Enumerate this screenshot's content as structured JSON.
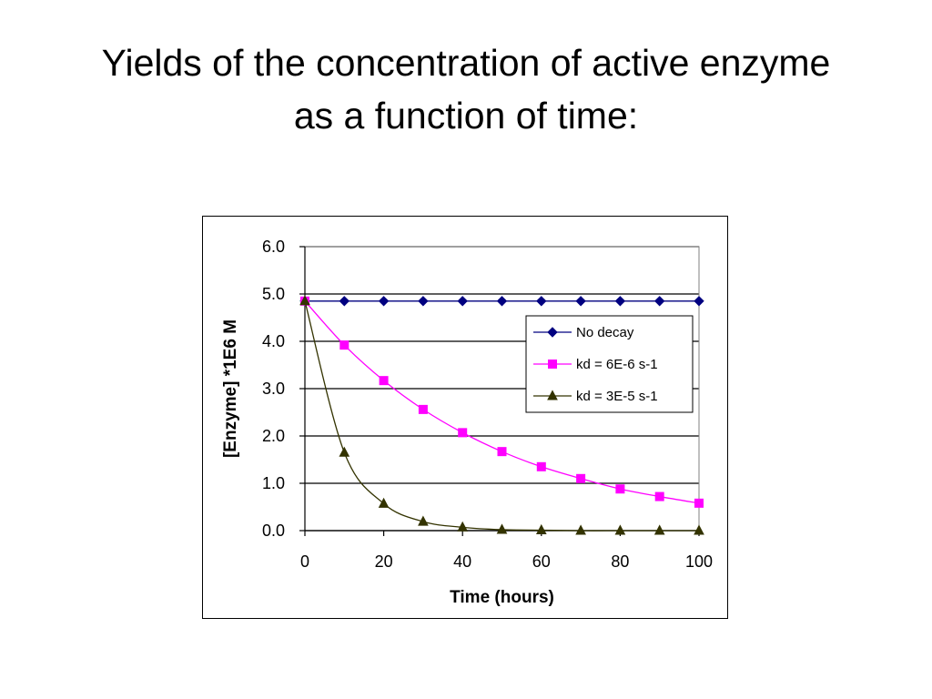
{
  "slide": {
    "title_line1": "Yields of the concentration of active enzyme",
    "title_line2": "as a function of time:"
  },
  "chart_data": {
    "type": "line",
    "xlabel": "Time (hours)",
    "ylabel": "[Enzyme] *1E6 M",
    "xlim": [
      0,
      100
    ],
    "ylim": [
      0,
      6
    ],
    "x_ticks": [
      0,
      20,
      40,
      60,
      80,
      100
    ],
    "y_ticks": [
      0,
      1,
      2,
      3,
      4,
      5,
      6
    ],
    "y_tick_labels": [
      "0.0",
      "1.0",
      "2.0",
      "3.0",
      "4.0",
      "5.0",
      "6.0"
    ],
    "grid": "horizontal",
    "legend_position": "right",
    "x": [
      0,
      10,
      20,
      30,
      40,
      50,
      60,
      70,
      80,
      90,
      100
    ],
    "series": [
      {
        "name": "No decay",
        "color": "#000080",
        "marker": "diamond",
        "values": [
          4.85,
          4.85,
          4.85,
          4.85,
          4.85,
          4.85,
          4.85,
          4.85,
          4.85,
          4.85,
          4.85
        ]
      },
      {
        "name": "kd = 6E-6 s-1",
        "color": "#ff00ff",
        "marker": "square",
        "values": [
          4.85,
          3.92,
          3.17,
          2.56,
          2.07,
          1.67,
          1.35,
          1.1,
          0.88,
          0.72,
          0.58
        ]
      },
      {
        "name": "kd = 3E-5 s-1",
        "color": "#333300",
        "marker": "triangle",
        "values": [
          4.85,
          1.65,
          0.57,
          0.19,
          0.07,
          0.02,
          0.01,
          0.0,
          0.0,
          0.0,
          0.0
        ]
      }
    ]
  }
}
